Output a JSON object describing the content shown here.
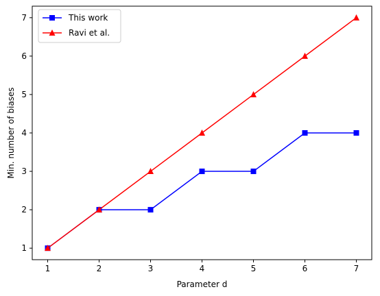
{
  "chart_data": {
    "type": "line",
    "title": "",
    "xlabel": "Parameter d",
    "ylabel": "Min. number of biases",
    "x": [
      1,
      2,
      3,
      4,
      5,
      6,
      7
    ],
    "xlim": [
      0.7,
      7.3
    ],
    "ylim": [
      0.7,
      7.3
    ],
    "xticks": [
      1,
      2,
      3,
      4,
      5,
      6,
      7
    ],
    "yticks": [
      1,
      2,
      3,
      4,
      5,
      6,
      7
    ],
    "grid": false,
    "legend_position": "top-left",
    "series": [
      {
        "name": "This work",
        "values": [
          1,
          2,
          2,
          3,
          3,
          4,
          4
        ],
        "color": "#0000ff",
        "marker": "square"
      },
      {
        "name": "Ravi et al.",
        "values": [
          1,
          2,
          3,
          4,
          5,
          6,
          7
        ],
        "color": "#ff0000",
        "marker": "triangle"
      }
    ]
  }
}
